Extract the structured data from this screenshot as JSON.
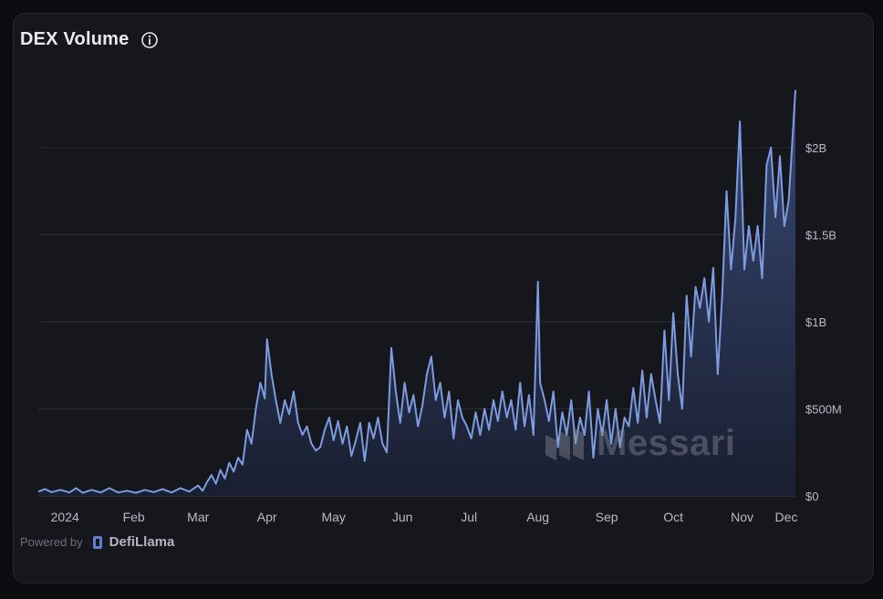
{
  "card": {
    "title": "DEX Volume",
    "info_icon": "info-icon"
  },
  "footer": {
    "powered_by": "Powered by",
    "brand": "DefiLlama",
    "brand_icon": "defillama-logo-icon"
  },
  "watermark": {
    "text": "Messari",
    "icon": "messari-logo-icon"
  },
  "colors": {
    "background": "#16171d",
    "line": "#7c9be0",
    "area_top": "#36466f",
    "grid": "#2b2d36",
    "text": "#e9eaee",
    "tick": "#b9bbc4"
  },
  "chart_data": {
    "type": "area",
    "title": "DEX Volume",
    "xlabel": "",
    "ylabel": "",
    "y_axis_side": "right",
    "ylim": [
      0,
      2350000000
    ],
    "y_ticks": [
      {
        "value": 0,
        "label": "$0"
      },
      {
        "value": 500000000,
        "label": "$500M"
      },
      {
        "value": 1000000000,
        "label": "$1B"
      },
      {
        "value": 1500000000,
        "label": "$1.5B"
      },
      {
        "value": 2000000000,
        "label": "$2B"
      }
    ],
    "x_range_days": [
      0,
      341
    ],
    "x_ticks": [
      {
        "day": 12,
        "label": "2024"
      },
      {
        "day": 43,
        "label": "Feb"
      },
      {
        "day": 72,
        "label": "Mar"
      },
      {
        "day": 103,
        "label": "Apr"
      },
      {
        "day": 133,
        "label": "May"
      },
      {
        "day": 164,
        "label": "Jun"
      },
      {
        "day": 194,
        "label": "Jul"
      },
      {
        "day": 225,
        "label": "Aug"
      },
      {
        "day": 256,
        "label": "Sep"
      },
      {
        "day": 286,
        "label": "Oct"
      },
      {
        "day": 317,
        "label": "Nov"
      },
      {
        "day": 347,
        "label": "Dec"
      }
    ],
    "series": [
      {
        "name": "DEX Volume (USD)",
        "points": [
          [
            0,
            25000000
          ],
          [
            3,
            40000000
          ],
          [
            6,
            22000000
          ],
          [
            10,
            35000000
          ],
          [
            14,
            20000000
          ],
          [
            17,
            45000000
          ],
          [
            20,
            18000000
          ],
          [
            24,
            35000000
          ],
          [
            28,
            20000000
          ],
          [
            32,
            45000000
          ],
          [
            36,
            20000000
          ],
          [
            40,
            30000000
          ],
          [
            44,
            18000000
          ],
          [
            48,
            35000000
          ],
          [
            52,
            22000000
          ],
          [
            56,
            40000000
          ],
          [
            60,
            20000000
          ],
          [
            64,
            45000000
          ],
          [
            68,
            25000000
          ],
          [
            72,
            60000000
          ],
          [
            74,
            30000000
          ],
          [
            76,
            80000000
          ],
          [
            78,
            120000000
          ],
          [
            80,
            70000000
          ],
          [
            82,
            150000000
          ],
          [
            84,
            100000000
          ],
          [
            86,
            190000000
          ],
          [
            88,
            140000000
          ],
          [
            90,
            220000000
          ],
          [
            92,
            180000000
          ],
          [
            94,
            380000000
          ],
          [
            96,
            300000000
          ],
          [
            98,
            500000000
          ],
          [
            100,
            650000000
          ],
          [
            102,
            560000000
          ],
          [
            103,
            900000000
          ],
          [
            105,
            700000000
          ],
          [
            107,
            550000000
          ],
          [
            109,
            420000000
          ],
          [
            111,
            550000000
          ],
          [
            113,
            470000000
          ],
          [
            115,
            600000000
          ],
          [
            117,
            420000000
          ],
          [
            119,
            350000000
          ],
          [
            121,
            400000000
          ],
          [
            123,
            300000000
          ],
          [
            125,
            260000000
          ],
          [
            127,
            280000000
          ],
          [
            129,
            380000000
          ],
          [
            131,
            450000000
          ],
          [
            133,
            320000000
          ],
          [
            135,
            430000000
          ],
          [
            137,
            300000000
          ],
          [
            139,
            400000000
          ],
          [
            141,
            230000000
          ],
          [
            143,
            320000000
          ],
          [
            145,
            420000000
          ],
          [
            147,
            200000000
          ],
          [
            149,
            420000000
          ],
          [
            151,
            330000000
          ],
          [
            153,
            450000000
          ],
          [
            155,
            300000000
          ],
          [
            157,
            250000000
          ],
          [
            159,
            850000000
          ],
          [
            161,
            600000000
          ],
          [
            163,
            420000000
          ],
          [
            165,
            650000000
          ],
          [
            167,
            480000000
          ],
          [
            169,
            580000000
          ],
          [
            171,
            400000000
          ],
          [
            173,
            520000000
          ],
          [
            175,
            700000000
          ],
          [
            177,
            800000000
          ],
          [
            179,
            550000000
          ],
          [
            181,
            650000000
          ],
          [
            183,
            450000000
          ],
          [
            185,
            600000000
          ],
          [
            187,
            330000000
          ],
          [
            189,
            550000000
          ],
          [
            191,
            450000000
          ],
          [
            193,
            400000000
          ],
          [
            195,
            330000000
          ],
          [
            197,
            480000000
          ],
          [
            199,
            350000000
          ],
          [
            201,
            500000000
          ],
          [
            203,
            380000000
          ],
          [
            205,
            550000000
          ],
          [
            207,
            430000000
          ],
          [
            209,
            600000000
          ],
          [
            211,
            450000000
          ],
          [
            213,
            550000000
          ],
          [
            215,
            380000000
          ],
          [
            217,
            650000000
          ],
          [
            219,
            400000000
          ],
          [
            221,
            580000000
          ],
          [
            223,
            350000000
          ],
          [
            225,
            1230000000
          ],
          [
            226,
            650000000
          ],
          [
            228,
            550000000
          ],
          [
            230,
            430000000
          ],
          [
            232,
            600000000
          ],
          [
            234,
            280000000
          ],
          [
            236,
            480000000
          ],
          [
            238,
            350000000
          ],
          [
            240,
            550000000
          ],
          [
            242,
            300000000
          ],
          [
            244,
            450000000
          ],
          [
            246,
            350000000
          ],
          [
            248,
            600000000
          ],
          [
            250,
            220000000
          ],
          [
            252,
            500000000
          ],
          [
            254,
            350000000
          ],
          [
            256,
            550000000
          ],
          [
            258,
            300000000
          ],
          [
            260,
            500000000
          ],
          [
            262,
            280000000
          ],
          [
            264,
            450000000
          ],
          [
            266,
            400000000
          ],
          [
            268,
            620000000
          ],
          [
            270,
            420000000
          ],
          [
            272,
            720000000
          ],
          [
            274,
            450000000
          ],
          [
            276,
            700000000
          ],
          [
            278,
            550000000
          ],
          [
            280,
            420000000
          ],
          [
            282,
            950000000
          ],
          [
            284,
            550000000
          ],
          [
            286,
            1050000000
          ],
          [
            288,
            700000000
          ],
          [
            290,
            500000000
          ],
          [
            292,
            1150000000
          ],
          [
            294,
            800000000
          ],
          [
            296,
            1200000000
          ],
          [
            298,
            1080000000
          ],
          [
            300,
            1250000000
          ],
          [
            302,
            1000000000
          ],
          [
            304,
            1310000000
          ],
          [
            306,
            700000000
          ],
          [
            308,
            1150000000
          ],
          [
            310,
            1750000000
          ],
          [
            312,
            1300000000
          ],
          [
            314,
            1600000000
          ],
          [
            316,
            2150000000
          ],
          [
            318,
            1300000000
          ],
          [
            320,
            1550000000
          ],
          [
            322,
            1350000000
          ],
          [
            324,
            1550000000
          ],
          [
            326,
            1250000000
          ],
          [
            328,
            1900000000
          ],
          [
            330,
            2000000000
          ],
          [
            332,
            1600000000
          ],
          [
            334,
            1950000000
          ],
          [
            336,
            1550000000
          ],
          [
            338,
            1700000000
          ],
          [
            341,
            2330000000
          ]
        ]
      }
    ]
  }
}
